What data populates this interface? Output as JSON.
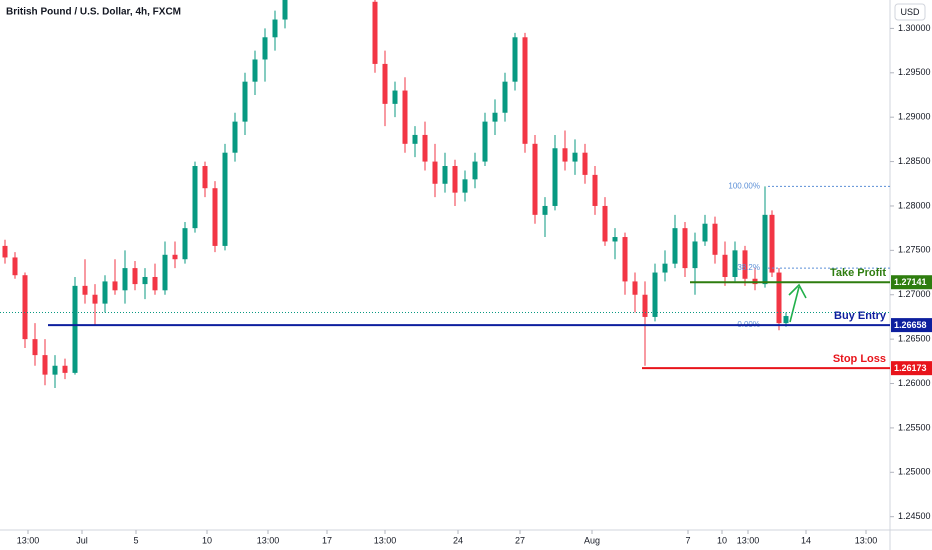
{
  "chart_data": {
    "type": "candlestick",
    "title": "British Pound / U.S. Dollar, 4h, FXCM",
    "currency": "USD",
    "up_color": "#089981",
    "down_color": "#f23645",
    "xlim": [
      0,
      890
    ],
    "ylim": [
      1.2435,
      1.3032
    ],
    "yticks": [
      {
        "value": 1.3,
        "label": "1.30000"
      },
      {
        "value": 1.295,
        "label": "1.29500"
      },
      {
        "value": 1.29,
        "label": "1.29000"
      },
      {
        "value": 1.285,
        "label": "1.28500"
      },
      {
        "value": 1.28,
        "label": "1.28000"
      },
      {
        "value": 1.275,
        "label": "1.27500"
      },
      {
        "value": 1.27,
        "label": "1.27000"
      },
      {
        "value": 1.265,
        "label": "1.26500"
      },
      {
        "value": 1.26,
        "label": "1.26000"
      },
      {
        "value": 1.255,
        "label": "1.25500"
      },
      {
        "value": 1.25,
        "label": "1.25000"
      },
      {
        "value": 1.245,
        "label": "1.24500"
      }
    ],
    "xticks": [
      {
        "value": 28,
        "label": "13:00"
      },
      {
        "value": 82,
        "label": "Jul"
      },
      {
        "value": 136,
        "label": "5"
      },
      {
        "value": 207,
        "label": "10"
      },
      {
        "value": 268,
        "label": "13:00"
      },
      {
        "value": 327,
        "label": "17"
      },
      {
        "value": 385,
        "label": "13:00"
      },
      {
        "value": 458,
        "label": "24"
      },
      {
        "value": 520,
        "label": "27"
      },
      {
        "value": 592,
        "label": "Aug"
      },
      {
        "value": 688,
        "label": "7"
      },
      {
        "value": 722,
        "label": "10"
      },
      {
        "value": 748,
        "label": "13:00"
      },
      {
        "value": 806,
        "label": "14"
      },
      {
        "value": 866,
        "label": "13:00"
      }
    ],
    "x": [
      5,
      15,
      25,
      35,
      45,
      55,
      65,
      75,
      85,
      95,
      105,
      115,
      125,
      135,
      145,
      155,
      165,
      175,
      185,
      195,
      205,
      215,
      225,
      235,
      245,
      255,
      265,
      275,
      285,
      375,
      385,
      395,
      405,
      415,
      425,
      435,
      445,
      455,
      465,
      475,
      485,
      495,
      505,
      515,
      525,
      535,
      545,
      555,
      565,
      575,
      585,
      595,
      605,
      615,
      625,
      635,
      645,
      655,
      665,
      675,
      685,
      695,
      705,
      715,
      725,
      735,
      745,
      755,
      765,
      772,
      779,
      786
    ],
    "open": [
      1.2755,
      1.2742,
      1.2722,
      1.265,
      1.2632,
      1.261,
      1.262,
      1.2612,
      1.271,
      1.27,
      1.269,
      1.2715,
      1.2705,
      1.273,
      1.2712,
      1.272,
      1.2705,
      1.2745,
      1.274,
      1.2775,
      1.2845,
      1.282,
      1.2755,
      1.286,
      1.2895,
      1.294,
      1.2965,
      1.299,
      1.301,
      1.303,
      1.296,
      1.2915,
      1.293,
      1.287,
      1.288,
      1.285,
      1.2825,
      1.2845,
      1.2815,
      1.283,
      1.285,
      1.2895,
      1.2905,
      1.294,
      1.299,
      1.287,
      1.279,
      1.28,
      1.2865,
      1.285,
      1.286,
      1.2835,
      1.28,
      1.276,
      1.2765,
      1.2715,
      1.27,
      1.2675,
      1.2725,
      1.2735,
      1.2775,
      1.273,
      1.276,
      1.278,
      1.2745,
      1.272,
      1.275,
      1.2718,
      1.2712,
      1.279,
      1.2725,
      1.2668
    ],
    "high": [
      1.2762,
      1.2748,
      1.2725,
      1.2668,
      1.265,
      1.2632,
      1.2628,
      1.272,
      1.274,
      1.2712,
      1.2722,
      1.274,
      1.275,
      1.2738,
      1.273,
      1.2735,
      1.276,
      1.276,
      1.2782,
      1.285,
      1.285,
      1.2828,
      1.287,
      1.2905,
      1.295,
      1.2975,
      1.3,
      1.302,
      1.304,
      1.3035,
      1.2975,
      1.294,
      1.2945,
      1.289,
      1.2895,
      1.287,
      1.286,
      1.2852,
      1.284,
      1.286,
      1.2905,
      1.292,
      1.295,
      1.2995,
      1.2995,
      1.288,
      1.281,
      1.288,
      1.2885,
      1.2875,
      1.287,
      1.2845,
      1.281,
      1.2775,
      1.277,
      1.2725,
      1.2715,
      1.2735,
      1.275,
      1.279,
      1.2782,
      1.277,
      1.279,
      1.2788,
      1.276,
      1.276,
      1.2755,
      1.273,
      1.2822,
      1.2795,
      1.273,
      1.268
    ],
    "low": [
      1.2735,
      1.2718,
      1.264,
      1.262,
      1.2598,
      1.2595,
      1.2605,
      1.261,
      1.269,
      1.2665,
      1.268,
      1.27,
      1.269,
      1.2705,
      1.2695,
      1.27,
      1.27,
      1.273,
      1.2735,
      1.277,
      1.281,
      1.2748,
      1.275,
      1.285,
      1.288,
      1.2925,
      1.294,
      1.2975,
      1.3,
      1.295,
      1.289,
      1.29,
      1.286,
      1.2855,
      1.284,
      1.281,
      1.2815,
      1.28,
      1.2805,
      1.282,
      1.2845,
      1.288,
      1.2895,
      1.293,
      1.286,
      1.278,
      1.2765,
      1.2795,
      1.284,
      1.2835,
      1.2825,
      1.279,
      1.2755,
      1.274,
      1.27,
      1.268,
      1.262,
      1.267,
      1.2715,
      1.273,
      1.272,
      1.27,
      1.2755,
      1.2735,
      1.271,
      1.2715,
      1.271,
      1.2705,
      1.2708,
      1.272,
      1.266,
      1.2664
    ],
    "close": [
      1.2742,
      1.2722,
      1.265,
      1.2632,
      1.261,
      1.262,
      1.2612,
      1.271,
      1.27,
      1.269,
      1.2715,
      1.2705,
      1.273,
      1.2712,
      1.272,
      1.2705,
      1.2745,
      1.274,
      1.2775,
      1.2845,
      1.282,
      1.2755,
      1.286,
      1.2895,
      1.294,
      1.2965,
      1.299,
      1.301,
      1.3035,
      1.296,
      1.2915,
      1.293,
      1.287,
      1.288,
      1.285,
      1.2825,
      1.2845,
      1.2815,
      1.283,
      1.285,
      1.2895,
      1.2905,
      1.294,
      1.299,
      1.287,
      1.279,
      1.28,
      1.2865,
      1.285,
      1.286,
      1.2835,
      1.28,
      1.276,
      1.2765,
      1.2715,
      1.27,
      1.2675,
      1.2725,
      1.2735,
      1.2775,
      1.273,
      1.276,
      1.278,
      1.2745,
      1.272,
      1.275,
      1.2718,
      1.2712,
      1.279,
      1.2725,
      1.2668,
      1.2676
    ],
    "last_price": 1.268,
    "levels": [
      {
        "name": "Take Profit",
        "value": 1.27141,
        "color": "#2e7d0f",
        "x_start": 690
      },
      {
        "name": "Buy Entry",
        "value": 1.26658,
        "color": "#0d1f9e",
        "x_start": 48
      },
      {
        "name": "Stop Loss",
        "value": 1.26173,
        "color": "#e8141b",
        "x_start": 642
      }
    ],
    "fib": {
      "color": "#5b8fd6",
      "x_start": 768,
      "levels": [
        {
          "label": "100.00%",
          "value": 1.2822
        },
        {
          "label": "38.2%",
          "value": 1.273
        },
        {
          "label": "0.00%",
          "value": 1.26658
        }
      ]
    }
  }
}
